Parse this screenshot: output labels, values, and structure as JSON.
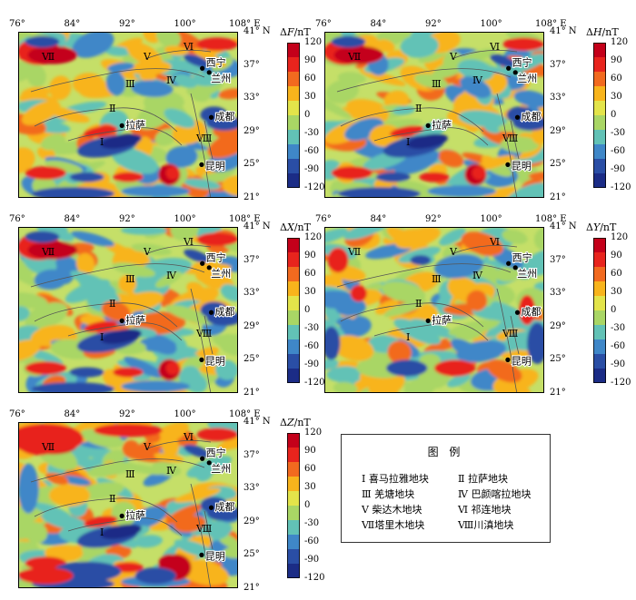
{
  "panels": [
    {
      "id": "F",
      "colorbar_title_prefix": "ΔF",
      "colorbar_title_suffix": "/nT",
      "variant": "F"
    },
    {
      "id": "H",
      "colorbar_title_prefix": "ΔH",
      "colorbar_title_suffix": "/nT",
      "variant": "H"
    },
    {
      "id": "X",
      "colorbar_title_prefix": "ΔX",
      "colorbar_title_suffix": "/nT",
      "variant": "X"
    },
    {
      "id": "Y",
      "colorbar_title_prefix": "ΔY",
      "colorbar_title_suffix": "/nT",
      "variant": "Y"
    },
    {
      "id": "Z",
      "colorbar_title_prefix": "ΔZ",
      "colorbar_title_suffix": "/nT",
      "variant": "Z"
    }
  ],
  "axes": {
    "lon_ticks": [
      "76°",
      "84°",
      "92°",
      "100°",
      "108°"
    ],
    "lon_unit": "E",
    "lat_ticks": [
      "41°",
      "37°",
      "33°",
      "29°",
      "25°",
      "21°"
    ],
    "lat_unit": "N",
    "lon_range": [
      76,
      108
    ],
    "lat_range": [
      21,
      41
    ]
  },
  "colorbar": {
    "ticks": [
      "120",
      "90",
      "60",
      "30",
      "0",
      "-30",
      "-60",
      "-90",
      "-120"
    ],
    "colors": [
      "#c4001a",
      "#e8241d",
      "#f26a1f",
      "#f8b41c",
      "#e3e44a",
      "#a9d665",
      "#62c2b6",
      "#3f87c8",
      "#2a4ea5",
      "#1b2c86"
    ]
  },
  "block_labels": [
    "Ⅰ",
    "Ⅱ",
    "Ⅲ",
    "Ⅳ",
    "Ⅴ",
    "Ⅵ",
    "Ⅶ",
    "Ⅷ"
  ],
  "cities": [
    {
      "name": "西宁",
      "lon": 102.8,
      "lat": 36.6
    },
    {
      "name": "兰州",
      "lon": 103.8,
      "lat": 36.1
    },
    {
      "name": "成都",
      "lon": 104.1,
      "lat": 30.7
    },
    {
      "name": "拉萨",
      "lon": 91.1,
      "lat": 29.7
    },
    {
      "name": "昆明",
      "lon": 102.7,
      "lat": 25.0
    }
  ],
  "legend": {
    "title": "图 例",
    "items": [
      "Ⅰ 喜马拉雅地块",
      "Ⅱ 拉萨地块",
      "Ⅲ 羌塘地块",
      "Ⅳ 巴颜喀拉地块",
      "Ⅴ 柴达木地块",
      "Ⅵ 祁连地块",
      "Ⅶ塔里木地块",
      "Ⅷ川滇地块"
    ]
  }
}
